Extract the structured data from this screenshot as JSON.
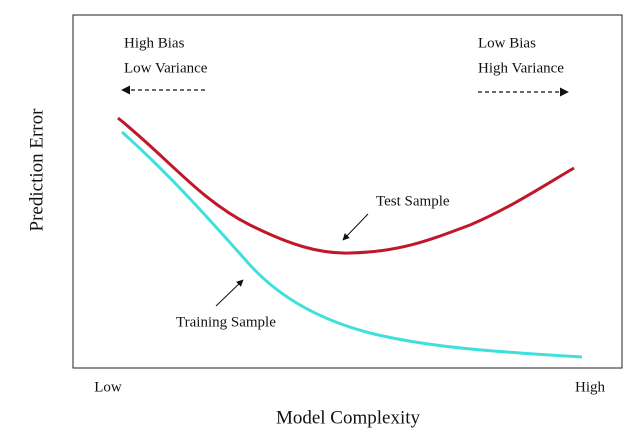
{
  "diagram": {
    "y_axis_label": "Prediction Error",
    "x_axis_label": "Model Complexity",
    "x_low_label": "Low",
    "x_high_label": "High",
    "left_annotation": [
      "High Bias",
      "Low Variance"
    ],
    "right_annotation": [
      "Low Bias",
      "High Variance"
    ],
    "curves": [
      {
        "label": "Test Sample",
        "color": "#c0182a"
      },
      {
        "label": "Training Sample",
        "color": "#3fe0dc"
      }
    ]
  }
}
